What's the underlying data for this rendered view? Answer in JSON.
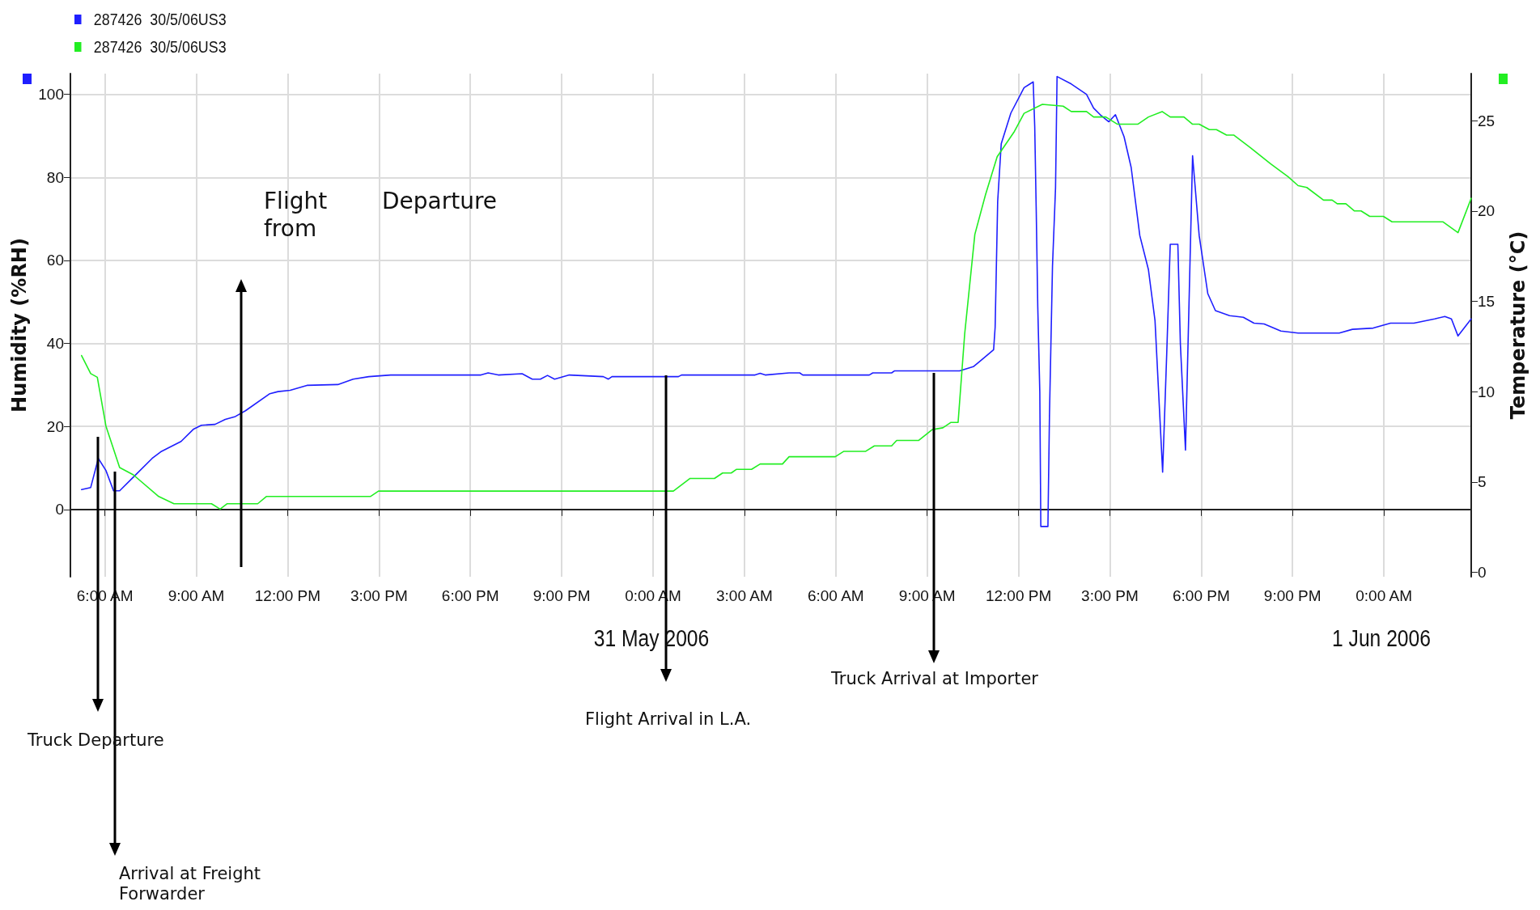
{
  "chart_data": {
    "type": "line",
    "ylabel": "Humidity (%RH)",
    "y2label": "Temperature (°C)",
    "xlim": [
      "2006-05-30T04:52",
      "2006-06-01T02:52"
    ],
    "xticks": [
      {
        "value": "2006-05-30T06:00",
        "label": "6:00 AM"
      },
      {
        "value": "2006-05-30T09:00",
        "label": "9:00 AM"
      },
      {
        "value": "2006-05-30T12:00",
        "label": "12:00 PM"
      },
      {
        "value": "2006-05-30T15:00",
        "label": "3:00 PM"
      },
      {
        "value": "2006-05-30T18:00",
        "label": "6:00 PM"
      },
      {
        "value": "2006-05-30T21:00",
        "label": "9:00 PM"
      },
      {
        "value": "2006-05-31T00:00",
        "label": "0:00 AM"
      },
      {
        "value": "2006-05-31T03:00",
        "label": "3:00 AM"
      },
      {
        "value": "2006-05-31T06:00",
        "label": "6:00 AM"
      },
      {
        "value": "2006-05-31T09:00",
        "label": "9:00 AM"
      },
      {
        "value": "2006-05-31T12:00",
        "label": "12:00 PM"
      },
      {
        "value": "2006-05-31T15:00",
        "label": "3:00 PM"
      },
      {
        "value": "2006-05-31T18:00",
        "label": "6:00 PM"
      },
      {
        "value": "2006-05-31T21:00",
        "label": "9:00 PM"
      },
      {
        "value": "2006-06-01T00:00",
        "label": "0:00 AM"
      }
    ],
    "ylim": [
      -16.2,
      105
    ],
    "yticks": [
      0,
      20,
      40,
      60,
      80,
      100
    ],
    "y2lim": [
      -0.24,
      27.6
    ],
    "y2ticks": [
      0,
      5,
      10,
      15,
      20,
      25
    ],
    "grid": true,
    "legend": "top left",
    "marker": "none",
    "line_style": "solid",
    "series": [
      {
        "name": "287426  30/5/06US3",
        "color": "#1f1fff",
        "x": [
          "2006-05-30T05:14",
          "2006-05-30T05:32",
          "2006-05-30T05:47",
          "2006-05-30T06:02",
          "2006-05-30T06:17",
          "2006-05-30T06:29",
          "2006-05-30T06:56",
          "2006-05-30T07:33",
          "2006-05-30T07:50",
          "2006-05-30T08:30",
          "2006-05-30T08:54",
          "2006-05-30T09:10",
          "2006-05-30T09:37",
          "2006-05-30T09:57",
          "2006-05-30T10:17",
          "2006-05-30T10:37",
          "2006-05-30T11:25",
          "2006-05-30T11:41",
          "2006-05-30T12:05",
          "2006-05-30T12:38",
          "2006-05-30T13:39",
          "2006-05-30T14:09",
          "2006-05-30T14:40",
          "2006-05-30T15:23",
          "2006-05-30T18:21",
          "2006-05-30T18:35",
          "2006-05-30T18:55",
          "2006-05-30T19:42",
          "2006-05-30T20:02",
          "2006-05-30T20:18",
          "2006-05-30T20:32",
          "2006-05-30T20:46",
          "2006-05-30T21:15",
          "2006-05-30T22:22",
          "2006-05-30T22:32",
          "2006-05-30T22:39",
          "2006-05-31T00:50",
          "2006-05-31T00:56",
          "2006-05-31T03:21",
          "2006-05-31T03:31",
          "2006-05-31T03:41",
          "2006-05-31T04:28",
          "2006-05-31T04:49",
          "2006-05-31T04:55",
          "2006-05-31T07:06",
          "2006-05-31T07:13",
          "2006-05-31T07:50",
          "2006-05-31T07:56",
          "2006-05-31T10:04",
          "2006-05-31T10:31",
          "2006-05-31T10:44",
          "2006-05-31T11:11",
          "2006-05-31T11:14",
          "2006-05-31T11:19",
          "2006-05-31T11:26",
          "2006-05-31T11:45",
          "2006-05-31T12:11",
          "2006-05-31T12:29",
          "2006-05-31T12:32",
          "2006-05-31T12:35",
          "2006-05-31T12:38",
          "2006-05-31T12:42",
          "2006-05-31T12:44",
          "2006-05-31T12:58",
          "2006-05-31T13:01",
          "2006-05-31T13:07",
          "2006-05-31T13:13",
          "2006-05-31T13:16",
          "2006-05-31T13:44",
          "2006-05-31T14:14",
          "2006-05-31T14:28",
          "2006-05-31T14:41",
          "2006-05-31T14:58",
          "2006-05-31T15:11",
          "2006-05-31T15:28",
          "2006-05-31T15:42",
          "2006-05-31T15:59",
          "2006-05-31T16:16",
          "2006-05-31T16:29",
          "2006-05-31T16:44",
          "2006-05-31T16:52",
          "2006-05-31T16:59",
          "2006-05-31T17:14",
          "2006-05-31T17:19",
          "2006-05-31T17:29",
          "2006-05-31T17:36",
          "2006-05-31T17:43",
          "2006-05-31T17:56",
          "2006-05-31T18:13",
          "2006-05-31T18:28",
          "2006-05-31T18:56",
          "2006-05-31T19:23",
          "2006-05-31T19:44",
          "2006-05-31T20:04",
          "2006-05-31T20:37",
          "2006-05-31T21:11",
          "2006-05-31T22:32",
          "2006-05-31T22:58",
          "2006-05-31T23:39",
          "2006-06-01T00:13",
          "2006-06-01T00:59",
          "2006-06-01T01:40",
          "2006-06-01T02:00",
          "2006-06-01T02:13",
          "2006-06-01T02:26",
          "2006-06-01T02:52"
        ],
        "values": [
          4.8,
          5.3,
          12.3,
          9.4,
          4.5,
          4.5,
          7.8,
          12.3,
          13.9,
          16.4,
          19.3,
          20.3,
          20.5,
          21.7,
          22.4,
          23.8,
          27.9,
          28.4,
          28.7,
          29.9,
          30.1,
          31.4,
          32.0,
          32.4,
          32.4,
          32.9,
          32.4,
          32.7,
          31.4,
          31.4,
          32.3,
          31.4,
          32.4,
          32.0,
          31.4,
          32.0,
          32.0,
          32.4,
          32.4,
          32.8,
          32.4,
          32.9,
          32.9,
          32.4,
          32.4,
          32.9,
          32.9,
          33.4,
          33.4,
          34.4,
          35.7,
          38.5,
          43.9,
          74.2,
          88.1,
          95.5,
          101.6,
          103.0,
          92.2,
          71.7,
          48.8,
          28.3,
          -4.1,
          -4.1,
          22.5,
          58.6,
          77.5,
          104.3,
          102.5,
          100,
          96.7,
          95.1,
          93.4,
          95.1,
          89.8,
          82.4,
          66.0,
          57.8,
          45.5,
          9.0,
          37.3,
          63.9,
          63.9,
          39.8,
          14.3,
          49.6,
          85.2,
          66.0,
          52.0,
          47.9,
          46.7,
          46.3,
          44.9,
          44.7,
          43.0,
          42.5,
          42.5,
          43.4,
          43.7,
          44.9,
          44.9,
          45.9,
          46.5,
          45.9,
          41.8,
          45.9
        ]
      },
      {
        "name": "287426  30/5/06US3",
        "color": "#22ee22",
        "axis": "y2",
        "x": [
          "2006-05-30T05:14",
          "2006-05-30T05:32",
          "2006-05-30T05:45",
          "2006-05-30T06:02",
          "2006-05-30T06:29",
          "2006-05-30T06:56",
          "2006-05-30T07:46",
          "2006-05-30T08:16",
          "2006-05-30T09:30",
          "2006-05-30T09:47",
          "2006-05-30T10:01",
          "2006-05-30T11:01",
          "2006-05-30T11:18",
          "2006-05-30T14:43",
          "2006-05-30T14:59",
          "2006-05-31T00:40",
          "2006-05-31T01:13",
          "2006-05-31T02:01",
          "2006-05-31T02:17",
          "2006-05-31T02:34",
          "2006-05-31T02:44",
          "2006-05-31T03:14",
          "2006-05-31T03:31",
          "2006-05-31T04:15",
          "2006-05-31T04:28",
          "2006-05-31T05:59",
          "2006-05-31T06:16",
          "2006-05-31T06:59",
          "2006-05-31T07:16",
          "2006-05-31T07:50",
          "2006-05-31T08:00",
          "2006-05-31T08:43",
          "2006-05-31T09:10",
          "2006-05-31T09:31",
          "2006-05-31T09:47",
          "2006-05-31T10:01",
          "2006-05-31T10:14",
          "2006-05-31T10:34",
          "2006-05-31T10:55",
          "2006-05-31T11:18",
          "2006-05-31T11:52",
          "2006-05-31T12:11",
          "2006-05-31T12:47",
          "2006-05-31T13:28",
          "2006-05-31T13:44",
          "2006-05-31T14:14",
          "2006-05-31T14:28",
          "2006-05-31T14:52",
          "2006-05-31T15:15",
          "2006-05-31T15:55",
          "2006-05-31T16:16",
          "2006-05-31T16:43",
          "2006-05-31T16:59",
          "2006-05-31T17:26",
          "2006-05-31T17:43",
          "2006-05-31T17:56",
          "2006-05-31T18:16",
          "2006-05-31T18:30",
          "2006-05-31T18:50",
          "2006-05-31T19:04",
          "2006-05-31T19:37",
          "2006-05-31T20:17",
          "2006-05-31T20:51",
          "2006-05-31T21:11",
          "2006-05-31T21:28",
          "2006-05-31T22:01",
          "2006-05-31T22:18",
          "2006-05-31T22:28",
          "2006-05-31T22:45",
          "2006-05-31T23:02",
          "2006-05-31T23:15",
          "2006-05-31T23:32",
          "2006-05-31T23:59",
          "2006-06-01T00:16",
          "2006-06-01T01:56",
          "2006-06-01T02:26",
          "2006-06-01T02:52"
        ],
        "values": [
          12.0,
          11.0,
          10.8,
          8.1,
          5.8,
          5.4,
          4.2,
          3.8,
          3.8,
          3.5,
          3.8,
          3.8,
          4.2,
          4.2,
          4.5,
          4.5,
          5.2,
          5.2,
          5.5,
          5.5,
          5.7,
          5.7,
          6.0,
          6.0,
          6.4,
          6.4,
          6.7,
          6.7,
          7.0,
          7.0,
          7.3,
          7.3,
          7.9,
          8.0,
          8.3,
          8.3,
          13.2,
          18.7,
          20.9,
          23.0,
          24.4,
          25.4,
          25.9,
          25.8,
          25.5,
          25.5,
          25.2,
          25.2,
          24.8,
          24.8,
          25.2,
          25.5,
          25.2,
          25.2,
          24.8,
          24.8,
          24.5,
          24.5,
          24.2,
          24.2,
          23.5,
          22.6,
          21.9,
          21.4,
          21.3,
          20.6,
          20.6,
          20.4,
          20.4,
          20.0,
          20.0,
          19.7,
          19.7,
          19.4,
          19.4,
          18.8,
          20.7
        ]
      }
    ],
    "annotations": [
      "Truck Departure",
      "Arrival at Freight Forwarder",
      "Flight from",
      "Departure",
      "Flight Arrival in L.A.",
      "Truck Arrival at Importer",
      "31 May 2006",
      "1 Jun 2006"
    ]
  }
}
